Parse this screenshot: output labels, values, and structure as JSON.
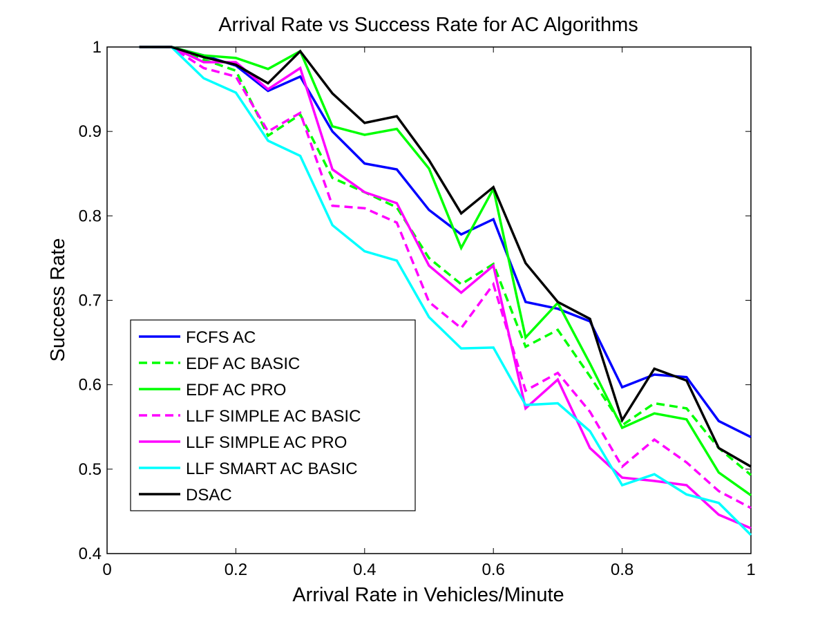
{
  "chart_data": {
    "type": "line",
    "title": "Arrival Rate vs Success Rate for AC Algorithms",
    "xlabel": "Arrival Rate in Vehicles/Minute",
    "ylabel": "Success Rate",
    "xlim": [
      0,
      1
    ],
    "ylim": [
      0.4,
      1
    ],
    "xticks": [
      0,
      0.2,
      0.4,
      0.6,
      0.8,
      1
    ],
    "xtick_labels": [
      "0",
      "0.2",
      "0.4",
      "0.6",
      "0.8",
      "1"
    ],
    "yticks": [
      0.4,
      0.5,
      0.6,
      0.7,
      0.8,
      0.9,
      1
    ],
    "ytick_labels": [
      "0.4",
      "0.5",
      "0.6",
      "0.7",
      "0.8",
      "0.9",
      "1"
    ],
    "grid": false,
    "legend_position": "lower-left",
    "x": [
      0.05,
      0.1,
      0.15,
      0.2,
      0.25,
      0.3,
      0.35,
      0.4,
      0.45,
      0.5,
      0.55,
      0.6,
      0.65,
      0.7,
      0.75,
      0.8,
      0.85,
      0.9,
      0.95,
      1.0
    ],
    "series": [
      {
        "name": "FCFS AC",
        "color": "#0000ff",
        "dash": "solid",
        "values": [
          1,
          1,
          0.99,
          0.978,
          0.948,
          0.965,
          0.9,
          0.862,
          0.855,
          0.807,
          0.778,
          0.796,
          0.698,
          0.69,
          0.675,
          0.597,
          0.612,
          0.609,
          0.557,
          0.538
        ]
      },
      {
        "name": "EDF AC BASIC",
        "color": "#00ff00",
        "dash": "dashed",
        "values": [
          1,
          1,
          0.985,
          0.972,
          0.895,
          0.92,
          0.845,
          0.828,
          0.81,
          0.75,
          0.719,
          0.743,
          0.645,
          0.665,
          0.61,
          0.552,
          0.578,
          0.572,
          0.525,
          0.493
        ]
      },
      {
        "name": "EDF AC PRO",
        "color": "#00ff00",
        "dash": "solid",
        "values": [
          1,
          1,
          0.99,
          0.987,
          0.974,
          0.995,
          0.906,
          0.896,
          0.903,
          0.856,
          0.762,
          0.832,
          0.656,
          0.697,
          0.625,
          0.549,
          0.566,
          0.559,
          0.496,
          0.469
        ]
      },
      {
        "name": "LLF SIMPLE AC BASIC",
        "color": "#ff00ff",
        "dash": "dashed",
        "values": [
          1,
          1,
          0.975,
          0.965,
          0.9,
          0.922,
          0.812,
          0.809,
          0.792,
          0.698,
          0.667,
          0.719,
          0.593,
          0.614,
          0.568,
          0.503,
          0.535,
          0.508,
          0.474,
          0.454
        ]
      },
      {
        "name": "LLF SIMPLE AC PRO",
        "color": "#ff00ff",
        "dash": "solid",
        "values": [
          1,
          1,
          0.982,
          0.982,
          0.95,
          0.975,
          0.855,
          0.828,
          0.815,
          0.741,
          0.709,
          0.741,
          0.572,
          0.606,
          0.525,
          0.49,
          0.486,
          0.481,
          0.446,
          0.43
        ]
      },
      {
        "name": "LLF SMART AC BASIC",
        "color": "#00ffff",
        "dash": "solid",
        "values": [
          1,
          1,
          0.963,
          0.946,
          0.889,
          0.871,
          0.789,
          0.758,
          0.747,
          0.68,
          0.643,
          0.644,
          0.576,
          0.578,
          0.545,
          0.481,
          0.494,
          0.47,
          0.46,
          0.422
        ]
      },
      {
        "name": "DSAC",
        "color": "#000000",
        "dash": "solid",
        "values": [
          1,
          1,
          0.988,
          0.979,
          0.957,
          0.995,
          0.945,
          0.91,
          0.918,
          0.866,
          0.803,
          0.834,
          0.744,
          0.698,
          0.678,
          0.558,
          0.619,
          0.605,
          0.525,
          0.503
        ]
      }
    ]
  }
}
